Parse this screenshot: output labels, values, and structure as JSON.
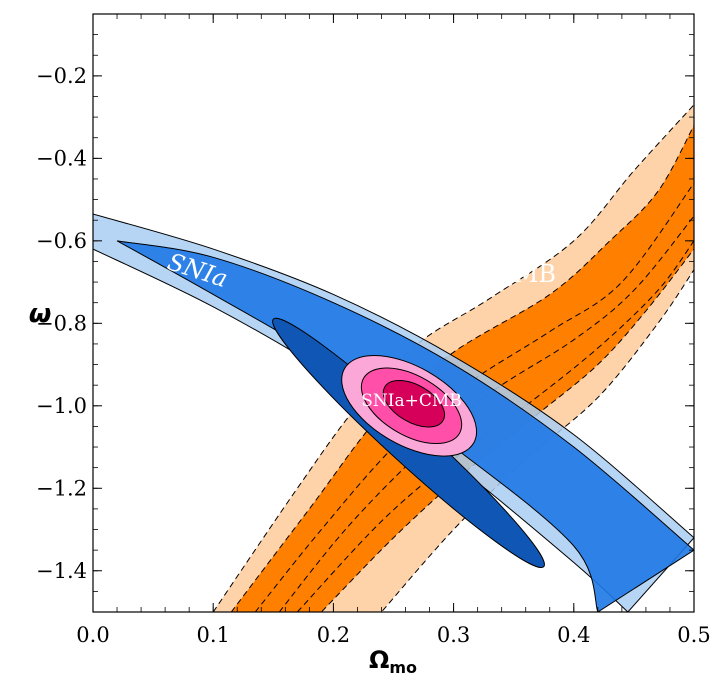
{
  "chart_data": {
    "type": "contour",
    "xlabel": "Ω",
    "xlabel_sub": "mo",
    "ylabel": "ω",
    "xlim": [
      0.0,
      0.5
    ],
    "ylim": [
      -1.5,
      -0.05
    ],
    "x_ticks": [
      0.0,
      0.1,
      0.2,
      0.3,
      0.4,
      0.5
    ],
    "x_tick_labels": [
      "0.0",
      "0.1",
      "0.2",
      "0.3",
      "0.4",
      "0.5"
    ],
    "y_ticks": [
      -0.2,
      -0.4,
      -0.6,
      -0.8,
      -1.0,
      -1.2,
      -1.4
    ],
    "y_tick_labels": [
      "−0.2",
      "−0.4",
      "−0.6",
      "−0.8",
      "−1.0",
      "−1.2",
      "−1.4"
    ],
    "grid": false,
    "colors": {
      "cmb_outer": "#ffd3aa",
      "cmb_inner": "#ff8000",
      "sn_outer": "#a9cdf2",
      "sn_mid": "#1e78e6",
      "sn_inner": "#1057b5",
      "joint_outer": "#fba8d8",
      "joint_mid": "#ff4fa8",
      "joint_inner": "#d6005a"
    },
    "series": [
      {
        "name": "CMB",
        "label_position": [
          0.36,
          -0.7
        ],
        "bands": [
          {
            "level": "outer",
            "left": [
              [
                0.1,
                -1.5
              ],
              [
                0.17,
                -1.2
              ],
              [
                0.22,
                -1.0
              ],
              [
                0.27,
                -0.85
              ],
              [
                0.33,
                -0.74
              ],
              [
                0.4,
                -0.6
              ],
              [
                0.45,
                -0.43
              ],
              [
                0.5,
                -0.27
              ]
            ],
            "right": [
              [
                0.24,
                -1.5
              ],
              [
                0.3,
                -1.3
              ],
              [
                0.36,
                -1.13
              ],
              [
                0.42,
                -0.98
              ],
              [
                0.47,
                -0.8
              ],
              [
                0.5,
                -0.67
              ]
            ]
          },
          {
            "level": "inner",
            "left": [
              [
                0.115,
                -1.5
              ],
              [
                0.18,
                -1.25
              ],
              [
                0.24,
                -1.02
              ],
              [
                0.3,
                -0.87
              ],
              [
                0.38,
                -0.73
              ],
              [
                0.43,
                -0.6
              ],
              [
                0.47,
                -0.48
              ],
              [
                0.5,
                -0.32
              ]
            ],
            "right": [
              [
                0.19,
                -1.5
              ],
              [
                0.25,
                -1.32
              ],
              [
                0.31,
                -1.16
              ],
              [
                0.37,
                -1.02
              ],
              [
                0.42,
                -0.9
              ],
              [
                0.46,
                -0.77
              ],
              [
                0.5,
                -0.62
              ]
            ]
          }
        ],
        "dashed_contours": [
          [
            [
              0.155,
              -1.5
            ],
            [
              0.21,
              -1.3
            ],
            [
              0.27,
              -1.12
            ],
            [
              0.33,
              -0.97
            ],
            [
              0.4,
              -0.84
            ],
            [
              0.45,
              -0.72
            ],
            [
              0.5,
              -0.54
            ]
          ],
          [
            [
              0.135,
              -1.5
            ],
            [
              0.19,
              -1.3
            ],
            [
              0.25,
              -1.1
            ],
            [
              0.31,
              -0.95
            ],
            [
              0.38,
              -0.82
            ],
            [
              0.44,
              -0.7
            ],
            [
              0.5,
              -0.46
            ]
          ],
          [
            [
              0.17,
              -1.5
            ],
            [
              0.24,
              -1.28
            ],
            [
              0.3,
              -1.13
            ],
            [
              0.36,
              -1.0
            ],
            [
              0.42,
              -0.86
            ],
            [
              0.47,
              -0.72
            ],
            [
              0.5,
              -0.6
            ]
          ]
        ]
      },
      {
        "name": "SNIa",
        "label_position": [
          0.085,
          -0.69
        ],
        "bands": [
          {
            "level": "outer",
            "upper": [
              [
                0.0,
                -0.535
              ],
              [
                0.1,
                -0.62
              ],
              [
                0.2,
                -0.73
              ],
              [
                0.3,
                -0.88
              ],
              [
                0.4,
                -1.07
              ],
              [
                0.5,
                -1.32
              ]
            ],
            "lower": [
              [
                0.0,
                -0.62
              ],
              [
                0.1,
                -0.76
              ],
              [
                0.2,
                -0.93
              ],
              [
                0.3,
                -1.14
              ],
              [
                0.4,
                -1.38
              ],
              [
                0.445,
                -1.5
              ]
            ]
          },
          {
            "level": "mid",
            "upper": [
              [
                0.02,
                -0.6
              ],
              [
                0.1,
                -0.64
              ],
              [
                0.2,
                -0.75
              ],
              [
                0.3,
                -0.9
              ],
              [
                0.4,
                -1.1
              ],
              [
                0.5,
                -1.35
              ]
            ],
            "lower": [
              [
                0.02,
                -0.6
              ],
              [
                0.1,
                -0.73
              ],
              [
                0.2,
                -0.9
              ],
              [
                0.3,
                -1.1
              ],
              [
                0.4,
                -1.34
              ],
              [
                0.42,
                -1.5
              ]
            ]
          },
          {
            "level": "inner",
            "center": [
              0.26,
              -1.08
            ],
            "extent": [
              [
                0.15,
                -0.79
              ],
              [
                0.375,
                -1.39
              ]
            ]
          }
        ]
      },
      {
        "name": "SNIa+CMB",
        "label_position": [
          0.265,
          -1.0
        ],
        "ellipses": [
          {
            "level": "outer",
            "center": [
              0.263,
              -1.0
            ],
            "rx": 0.062,
            "ry": 0.21,
            "tilt_deg": 30
          },
          {
            "level": "mid",
            "center": [
              0.265,
              -1.0
            ],
            "rx": 0.046,
            "ry": 0.16,
            "tilt_deg": 30
          },
          {
            "level": "inner",
            "center": [
              0.267,
              -0.995
            ],
            "rx": 0.028,
            "ry": 0.1,
            "tilt_deg": 30
          }
        ]
      }
    ]
  }
}
